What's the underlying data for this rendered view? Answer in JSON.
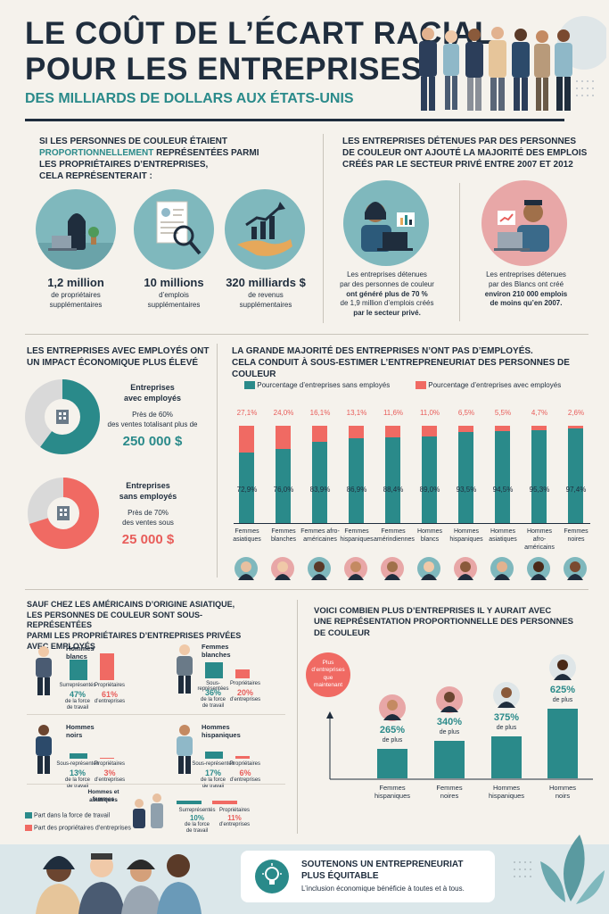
{
  "header": {
    "title_line1": "LE COÛT DE L’ÉCART RACIAL",
    "title_line2": "POUR LES ENTREPRISES",
    "subtitle": "DES MILLIARDS DE DOLLARS AUX ÉTATS-UNIS"
  },
  "section1": {
    "heading_pre": "SI LES PERSONNES DE COULEUR ÉTAIENT",
    "heading_accent": "PROPORTIONNELLEMENT",
    "heading_mid": "REPRÉSENTÉES PARMI",
    "heading_post1": "LES PROPRIÉTAIRES D’ENTREPRISES,",
    "heading_post2": "CELA REPRÉSENTERAIT :",
    "stats": [
      {
        "value": "1,2 million",
        "desc1": "de propriétaires",
        "desc2": "supplémentaires",
        "icon": "laptop-woman-icon"
      },
      {
        "value": "10 millions",
        "desc1": "d’emplois",
        "desc2": "supplémentaires",
        "icon": "resume-magnifier-icon"
      },
      {
        "value": "320 milliards $",
        "desc1": "de revenus",
        "desc2": "supplémentaires",
        "icon": "growth-hand-icon"
      }
    ]
  },
  "section2": {
    "heading1": "LES ENTREPRISES DÉTENUES PAR DES PERSONNES",
    "heading2": "DE COULEUR ONT AJOUTÉ LA MAJORITÉ DES EMPLOIS",
    "heading3": "CRÉÉS PAR LE SECTEUR PRIVÉ ENTRE 2007 ET 2012",
    "left": {
      "l1": "Les entreprises détenues",
      "l2": "par des personnes de couleur",
      "l3": "ont généré plus de 70 %",
      "l4": "de 1,9 million d’emplois créés",
      "l5": "par le secteur privé."
    },
    "right": {
      "l1": "Les entreprises détenues",
      "l2": "par des Blancs ont créé",
      "l3": "environ 210 000 emplois",
      "l4": "de moins qu’en 2007."
    }
  },
  "section3": {
    "heading1": "LES ENTREPRISES AVEC EMPLOYÉS ONT",
    "heading2": "UN IMPACT ÉCONOMIQUE PLUS ÉLEVÉ",
    "with": {
      "title1": "Entreprises",
      "title2": "avec employés",
      "line1": "Près de 60%",
      "line2": "des ventes totalisant plus de",
      "amount": "250 000 $",
      "share": 0.6
    },
    "without": {
      "title1": "Entreprises",
      "title2": "sans employés",
      "line1": "Près de 70%",
      "line2": "des ventes sous",
      "amount": "25 000 $",
      "share": 0.7
    }
  },
  "section4": {
    "heading1": "LA GRANDE MAJORITÉ DES ENTREPRISES N’ONT PAS D’EMPLOYÉS.",
    "heading2": "CELA CONDUIT À SOUS-ESTIMER L’ENTREPRENEURIAT DES PERSONNES DE COULEUR",
    "legend_without": "Pourcentage d’entreprises sans employés",
    "legend_with": "Pourcentage d’entreprises avec employés"
  },
  "chart_data": [
    {
      "type": "bar",
      "stacked": true,
      "categories": [
        "Femmes asiatiques",
        "Femmes blanches",
        "Femmes afro-américaines",
        "Femmes hispaniques",
        "Femmes amérindiennes",
        "Hommes blancs",
        "Hommes hispaniques",
        "Hommes asiatiques",
        "Hommes afro-américains",
        "Femmes noires"
      ],
      "series": [
        {
          "name": "Pourcentage d’entreprises sans employés",
          "values": [
            72.9,
            76.0,
            83.9,
            86.9,
            88.4,
            89.0,
            93.5,
            94.5,
            95.3,
            97.4
          ],
          "labels": [
            "72,9%",
            "76,0%",
            "83,9%",
            "86,9%",
            "88,4%",
            "89,0%",
            "93,5%",
            "94,5%",
            "95,3%",
            "97,4%"
          ]
        },
        {
          "name": "Pourcentage d’entreprises avec employés",
          "values": [
            27.1,
            24.0,
            16.1,
            13.1,
            11.6,
            11.0,
            6.5,
            5.5,
            4.7,
            2.6
          ],
          "labels": [
            "27,1%",
            "24,0%",
            "16,1%",
            "13,1%",
            "11,6%",
            "11,0%",
            "6,5%",
            "5,5%",
            "4,7%",
            "2,6%"
          ]
        }
      ],
      "colors": [
        "#2a8a8a",
        "#f06a63"
      ],
      "ylim": [
        0,
        100
      ]
    },
    {
      "type": "bar",
      "categories": [
        "Femmes hispaniques",
        "Femmes noires",
        "Hommes hispaniques",
        "Hommes noirs"
      ],
      "values": [
        265,
        340,
        375,
        625
      ],
      "labels": [
        "265%",
        "340%",
        "375%",
        "625%"
      ],
      "unit_label": "de plus",
      "colors": [
        "#2a8a8a"
      ]
    }
  ],
  "section5": {
    "heading1": "SAUF CHEZ LES AMÉRICAINS D’ORIGINE ASIATIQUE,",
    "heading2": "LES PERSONNES DE COULEUR SONT SOUS-REPRÉSENTÉES",
    "heading3": "PARMI LES PROPRIÉTAIRES D’ENTREPRISES PRIVÉES",
    "heading4": "AVEC EMPLOYÉS",
    "groups": [
      {
        "name": "Hommes blancs",
        "left_top": "Surreprésentés",
        "left_pct": "47%",
        "left_d1": "de la force",
        "left_d2": "de travail",
        "right_top": "Propriétaires",
        "right_pct": "61%",
        "right_d1": "d’entreprises",
        "labor": 47,
        "owners": 61
      },
      {
        "name": "Femmes blanches",
        "left_top": "Sous-représentées",
        "left_pct": "36%",
        "left_d1": "de la force",
        "left_d2": "de travail",
        "right_top": "Propriétaires",
        "right_pct": "20%",
        "right_d1": "d’entreprises",
        "labor": 36,
        "owners": 20
      },
      {
        "name": "Hommes noirs",
        "left_top": "Sous-représentés",
        "left_pct": "13%",
        "left_d1": "de la force",
        "left_d2": "de travail",
        "right_top": "Propriétaires",
        "right_pct": "3%",
        "right_d1": "d’entreprises",
        "labor": 13,
        "owners": 3
      },
      {
        "name": "Hommes hispaniques",
        "left_top": "Sous-représentés",
        "left_pct": "17%",
        "left_d1": "de la force",
        "left_d2": "de travail",
        "right_top": "Propriétaires",
        "right_pct": "6%",
        "right_d1": "d’entreprises",
        "labor": 17,
        "owners": 6
      },
      {
        "name": "Hommes et femmes asiatiques",
        "name1": "Hommes et femmes",
        "name2": "asiatiques",
        "left_top": "Surreprésentés",
        "left_pct": "10%",
        "left_d1": "de la force",
        "left_d2": "de travail",
        "right_top": "Propriétaires",
        "right_pct": "11%",
        "right_d1": "d’entreprises",
        "labor": 10,
        "owners": 11
      }
    ],
    "legend_labor": "Part dans la force de travail",
    "legend_owners": "Part des propriétaires d’entreprises"
  },
  "section6": {
    "heading1": "VOICI COMBIEN PLUS D’ENTREPRISES IL Y AURAIT AVEC",
    "heading2": "UNE REPRÉSENTATION PROPORTIONNELLE DES PERSONNES",
    "heading3": "DE COULEUR",
    "bubble1": "Plus",
    "bubble2": "d’entreprises",
    "bubble3": "que",
    "bubble4": "maintenant",
    "cat_labels": [
      [
        "Femmes",
        "hispaniques"
      ],
      [
        "Femmes",
        "noires"
      ],
      [
        "Hommes",
        "hispaniques"
      ],
      [
        "Hommes",
        "noirs"
      ]
    ],
    "suffix": "de plus"
  },
  "footer": {
    "cta1": "SOUTENONS UN ENTREPRENEURIAT",
    "cta2": "PLUS ÉQUITABLE",
    "tagline": "L’inclusion économique bénéficie à toutes et à tous."
  },
  "colors": {
    "navy": "#1f2d3d",
    "teal": "#2a8a8a",
    "coral": "#f06a63",
    "light_teal": "#7fb8bd",
    "pink": "#e8a7a7"
  }
}
